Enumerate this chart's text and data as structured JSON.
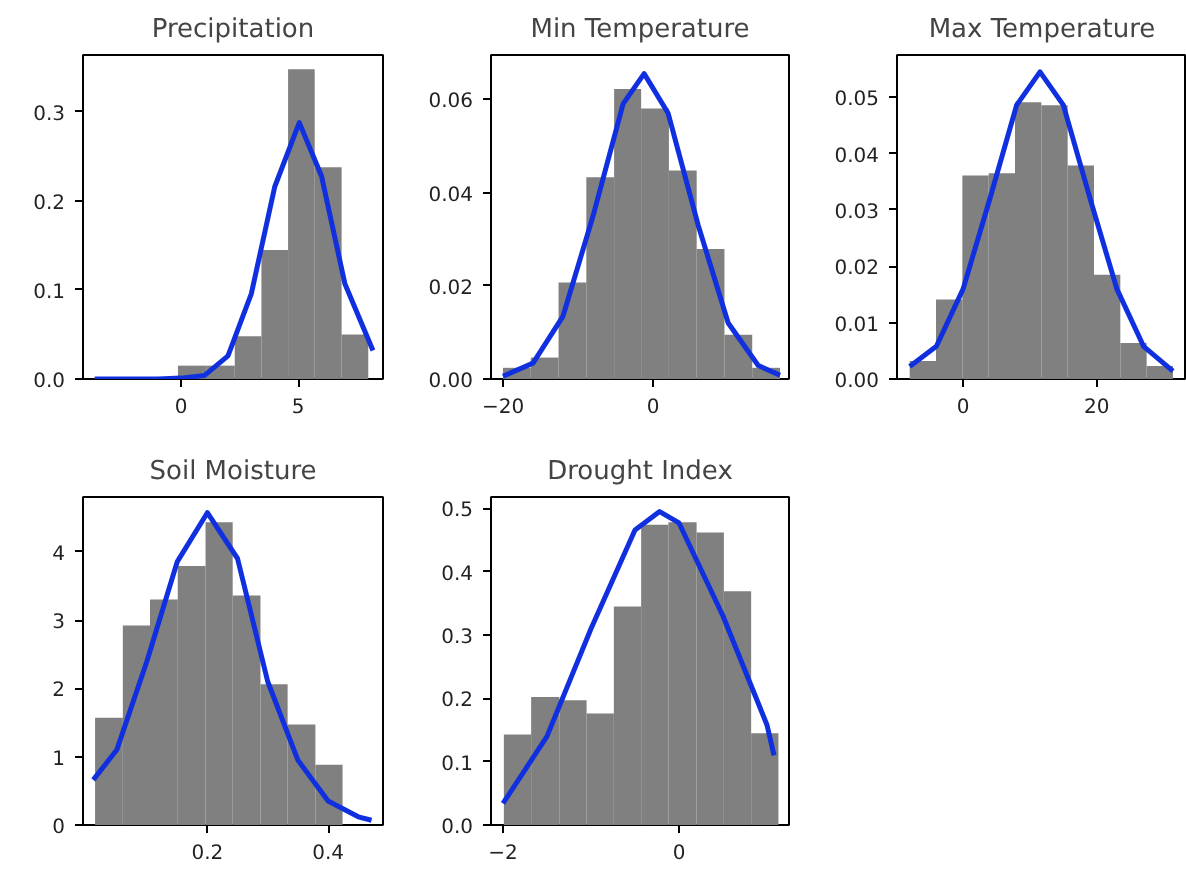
{
  "chart_data": [
    {
      "type": "histogram",
      "title": "Precipitation",
      "xlim": [
        -4.2,
        8.63
      ],
      "ylim": [
        0,
        0.364
      ],
      "xticks": [
        0,
        5
      ],
      "yticks": [
        {
          "value": 0,
          "label": "0.0"
        },
        0.1,
        0.2,
        0.3
      ],
      "grid": false,
      "series": [
        {
          "type": "histogram",
          "color": "#808080",
          "bins": [
            -0.14,
            1.07,
            2.29,
            3.43,
            4.57,
            5.71,
            6.86,
            8.0
          ],
          "values": [
            0.015,
            0.015,
            0.048,
            0.145,
            0.348,
            0.238,
            0.05
          ]
        },
        {
          "type": "line",
          "color": "#1030e0",
          "x": [
            -3.7,
            -2,
            -1,
            0,
            1,
            2,
            3,
            4,
            5.05,
            6,
            7,
            8.2
          ],
          "values": [
            0.0,
            0.0,
            0.0,
            0.001,
            0.004,
            0.026,
            0.096,
            0.216,
            0.288,
            0.228,
            0.107,
            0.032
          ]
        }
      ]
    },
    {
      "type": "histogram",
      "title": "Min Temperature",
      "xlim": [
        -21.6,
        18.1
      ],
      "ylim": [
        0,
        0.0695
      ],
      "xticks": [
        {
          "value": -20,
          "label": "−20"
        },
        0
      ],
      "yticks": [
        {
          "value": 0,
          "label": "0.00"
        },
        {
          "value": 0.02,
          "label": "0.02"
        },
        {
          "value": 0.04,
          "label": "0.04"
        },
        {
          "value": 0.06,
          "label": "0.06"
        }
      ],
      "grid": false,
      "series": [
        {
          "type": "histogram",
          "color": "#808080",
          "bins": [
            -20.0,
            -16.3,
            -12.6,
            -8.9,
            -5.2,
            -1.6,
            2.1,
            5.8,
            9.5,
            13.2,
            16.9
          ],
          "values": [
            0.0024,
            0.0046,
            0.0207,
            0.0433,
            0.0622,
            0.058,
            0.0447,
            0.0279,
            0.0095,
            0.0024
          ]
        },
        {
          "type": "line",
          "color": "#1030e0",
          "x": [
            -20,
            -16,
            -12,
            -8,
            -4,
            -1.2,
            2,
            6,
            10,
            14,
            16.9
          ],
          "values": [
            0.0006,
            0.0034,
            0.0135,
            0.035,
            0.059,
            0.0655,
            0.057,
            0.033,
            0.012,
            0.0029,
            0.0008
          ]
        }
      ]
    },
    {
      "type": "histogram",
      "title": "Max Temperature",
      "xlim": [
        -9.9,
        33.5
      ],
      "ylim": [
        0,
        0.0575
      ],
      "xticks": [
        0,
        20
      ],
      "yticks": [
        {
          "value": 0,
          "label": "0.00"
        },
        {
          "value": 0.01,
          "label": "0.01"
        },
        {
          "value": 0.02,
          "label": "0.02"
        },
        {
          "value": 0.03,
          "label": "0.03"
        },
        {
          "value": 0.04,
          "label": "0.04"
        },
        {
          "value": 0.05,
          "label": "0.05"
        }
      ],
      "grid": false,
      "series": [
        {
          "type": "histogram",
          "color": "#808080",
          "bins": [
            -8.0,
            -4.06,
            -0.12,
            3.82,
            7.76,
            11.7,
            15.64,
            19.58,
            23.52,
            27.46,
            31.4
          ],
          "values": [
            0.0032,
            0.0141,
            0.0361,
            0.0365,
            0.0491,
            0.0486,
            0.0379,
            0.0185,
            0.0064,
            0.0023
          ]
        },
        {
          "type": "line",
          "color": "#1030e0",
          "x": [
            -8,
            -4,
            0,
            4,
            8,
            11.5,
            15,
            19,
            23,
            27,
            31.4
          ],
          "values": [
            0.0022,
            0.0058,
            0.016,
            0.032,
            0.0486,
            0.0545,
            0.0486,
            0.032,
            0.016,
            0.0058,
            0.0014
          ]
        }
      ]
    },
    {
      "type": "histogram",
      "title": "Soil Moisture",
      "xlim": [
        -0.006,
        0.491
      ],
      "ylim": [
        0,
        4.8
      ],
      "xticks": [
        0.2,
        0.4
      ],
      "yticks": [
        0,
        1,
        2,
        3,
        4
      ],
      "grid": false,
      "series": [
        {
          "type": "histogram",
          "color": "#808080",
          "bins": [
            0.014,
            0.06,
            0.105,
            0.151,
            0.197,
            0.242,
            0.288,
            0.333,
            0.379,
            0.424
          ],
          "values": [
            1.57,
            2.92,
            3.3,
            3.79,
            4.43,
            3.36,
            2.06,
            1.47,
            0.88
          ]
        },
        {
          "type": "line",
          "color": "#1030e0",
          "x": [
            0.011,
            0.05,
            0.1,
            0.15,
            0.2,
            0.25,
            0.3,
            0.35,
            0.4,
            0.45,
            0.472
          ],
          "values": [
            0.66,
            1.1,
            2.4,
            3.85,
            4.57,
            3.9,
            2.1,
            0.95,
            0.35,
            0.12,
            0.07
          ]
        }
      ]
    },
    {
      "type": "histogram",
      "title": "Drought Index",
      "xlim": [
        -2.136,
        1.25
      ],
      "ylim": [
        0,
        0.518
      ],
      "xticks": [
        {
          "value": -2,
          "label": "−2"
        },
        0
      ],
      "yticks": [
        {
          "value": 0,
          "label": "0.0"
        },
        0.1,
        0.2,
        0.3,
        0.4,
        0.5
      ],
      "grid": false,
      "series": [
        {
          "type": "histogram",
          "color": "#808080",
          "bins": [
            -1.99,
            -1.68,
            -1.36,
            -1.05,
            -0.74,
            -0.43,
            -0.12,
            0.2,
            0.51,
            0.82,
            1.13
          ],
          "values": [
            0.143,
            0.202,
            0.197,
            0.176,
            0.345,
            0.474,
            0.478,
            0.462,
            0.369,
            0.145
          ]
        },
        {
          "type": "line",
          "color": "#1030e0",
          "x": [
            -2.0,
            -1.5,
            -1.0,
            -0.5,
            -0.22,
            0,
            0.5,
            1.0,
            1.08
          ],
          "values": [
            0.034,
            0.14,
            0.31,
            0.466,
            0.495,
            0.477,
            0.33,
            0.158,
            0.11
          ]
        }
      ]
    }
  ]
}
